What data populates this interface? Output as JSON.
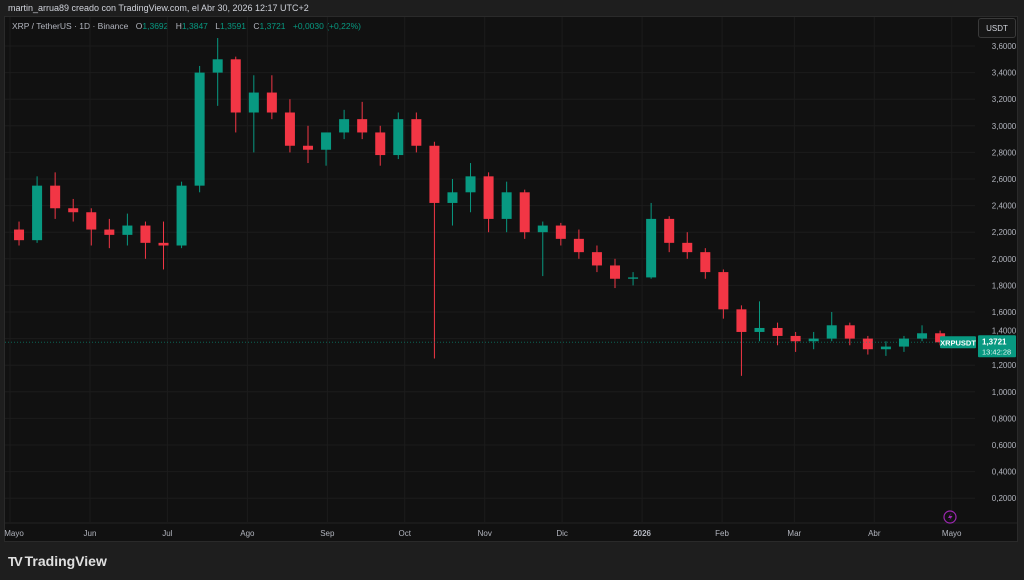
{
  "header": {
    "attribution": "martin_arrua89 creado con TradingView.com, el Abr 30, 2026 12:17 UTC+2"
  },
  "legend": {
    "symbol": "XRP / TetherUS · 1D · Binance",
    "open_label": "O",
    "open": "1,3692",
    "high_label": "H",
    "high": "1,3847",
    "low_label": "L",
    "low": "1,3591",
    "close_label": "C",
    "close": "1,3721",
    "change": "+0,0030 (+0,22%)"
  },
  "currency_button": "USDT",
  "last_price": {
    "symbol_tag": "XRPUSDT",
    "price": "1,3721",
    "countdown": "13:42:28",
    "value": 1.3721
  },
  "colors": {
    "up": "#089981",
    "down": "#f23645",
    "background": "#111111",
    "grid": "#1c1c1c",
    "alert": "#9c27b0"
  },
  "icons": {
    "alert": "lightning-icon",
    "logo": "tradingview-logo"
  },
  "footer": {
    "logo_text": "TradingView"
  },
  "chart_data": {
    "type": "candlestick",
    "interval_note": "1D candles (approximated here as weekly OHLC)",
    "ylim": [
      0.1,
      3.7
    ],
    "yticks": [
      3.6,
      3.4,
      3.2,
      3.0,
      2.8,
      2.6,
      2.4,
      2.2,
      2.0,
      1.8,
      1.6,
      1.4,
      1.2,
      1.0,
      0.8,
      0.6,
      0.4,
      0.2
    ],
    "ytick_labels": [
      "3,6000",
      "3,4000",
      "3,2000",
      "3,0000",
      "2,8000",
      "2,6000",
      "2,4000",
      "2,2000",
      "2,0000",
      "1,8000",
      "1,6000",
      "1,4000",
      "1,2000",
      "1,0000",
      "0,8000",
      "0,6000",
      "0,4000",
      "0,2000"
    ],
    "xtick_labels": [
      "Mayo",
      "Jun",
      "Jul",
      "Ago",
      "Sep",
      "Oct",
      "Nov",
      "Dic",
      "2026",
      "Feb",
      "Mar",
      "Abr",
      "Mayo"
    ],
    "xtick_dates": [
      "2025-05-01",
      "2025-06-01",
      "2025-07-01",
      "2025-08-01",
      "2025-09-01",
      "2025-10-01",
      "2025-11-01",
      "2025-12-01",
      "2026-01-01",
      "2026-02-01",
      "2026-03-01",
      "2026-04-01",
      "2026-05-01"
    ],
    "grid": true,
    "ohlc_start": "2025-05-01",
    "ohlc": [
      [
        2.22,
        2.28,
        2.1,
        2.14
      ],
      [
        2.14,
        2.62,
        2.12,
        2.55
      ],
      [
        2.55,
        2.65,
        2.3,
        2.38
      ],
      [
        2.38,
        2.45,
        2.28,
        2.35
      ],
      [
        2.35,
        2.38,
        2.1,
        2.22
      ],
      [
        2.22,
        2.3,
        2.08,
        2.18
      ],
      [
        2.18,
        2.34,
        2.1,
        2.25
      ],
      [
        2.25,
        2.28,
        2.0,
        2.12
      ],
      [
        2.12,
        2.28,
        1.92,
        2.1
      ],
      [
        2.1,
        2.58,
        2.08,
        2.55
      ],
      [
        2.55,
        3.45,
        2.5,
        3.4
      ],
      [
        3.4,
        3.66,
        3.15,
        3.5
      ],
      [
        3.5,
        3.52,
        2.95,
        3.1
      ],
      [
        3.1,
        3.38,
        2.8,
        3.25
      ],
      [
        3.25,
        3.38,
        3.05,
        3.1
      ],
      [
        3.1,
        3.2,
        2.8,
        2.85
      ],
      [
        2.85,
        3.0,
        2.72,
        2.82
      ],
      [
        2.82,
        2.95,
        2.7,
        2.95
      ],
      [
        2.95,
        3.12,
        2.9,
        3.05
      ],
      [
        3.05,
        3.18,
        2.9,
        2.95
      ],
      [
        2.95,
        3.0,
        2.7,
        2.78
      ],
      [
        2.78,
        3.1,
        2.75,
        3.05
      ],
      [
        3.05,
        3.1,
        2.8,
        2.85
      ],
      [
        2.85,
        2.88,
        1.25,
        2.42
      ],
      [
        2.42,
        2.6,
        2.25,
        2.5
      ],
      [
        2.5,
        2.72,
        2.35,
        2.62
      ],
      [
        2.62,
        2.65,
        2.2,
        2.3
      ],
      [
        2.3,
        2.58,
        2.2,
        2.5
      ],
      [
        2.5,
        2.52,
        2.15,
        2.2
      ],
      [
        2.2,
        2.28,
        1.87,
        2.25
      ],
      [
        2.25,
        2.27,
        2.1,
        2.15
      ],
      [
        2.15,
        2.22,
        2.0,
        2.05
      ],
      [
        2.05,
        2.1,
        1.9,
        1.95
      ],
      [
        1.95,
        2.0,
        1.78,
        1.85
      ],
      [
        1.85,
        1.9,
        1.8,
        1.86
      ],
      [
        1.86,
        2.42,
        1.85,
        2.3
      ],
      [
        2.3,
        2.32,
        2.05,
        2.12
      ],
      [
        2.12,
        2.2,
        2.0,
        2.05
      ],
      [
        2.05,
        2.08,
        1.85,
        1.9
      ],
      [
        1.9,
        1.92,
        1.55,
        1.62
      ],
      [
        1.62,
        1.65,
        1.12,
        1.45
      ],
      [
        1.45,
        1.68,
        1.38,
        1.48
      ],
      [
        1.48,
        1.52,
        1.35,
        1.42
      ],
      [
        1.42,
        1.45,
        1.3,
        1.38
      ],
      [
        1.38,
        1.45,
        1.32,
        1.4
      ],
      [
        1.4,
        1.6,
        1.38,
        1.5
      ],
      [
        1.5,
        1.52,
        1.35,
        1.4
      ],
      [
        1.4,
        1.42,
        1.28,
        1.32
      ],
      [
        1.32,
        1.38,
        1.27,
        1.34
      ],
      [
        1.34,
        1.42,
        1.3,
        1.4
      ],
      [
        1.4,
        1.5,
        1.38,
        1.44
      ],
      [
        1.44,
        1.46,
        1.35,
        1.3721
      ]
    ]
  }
}
